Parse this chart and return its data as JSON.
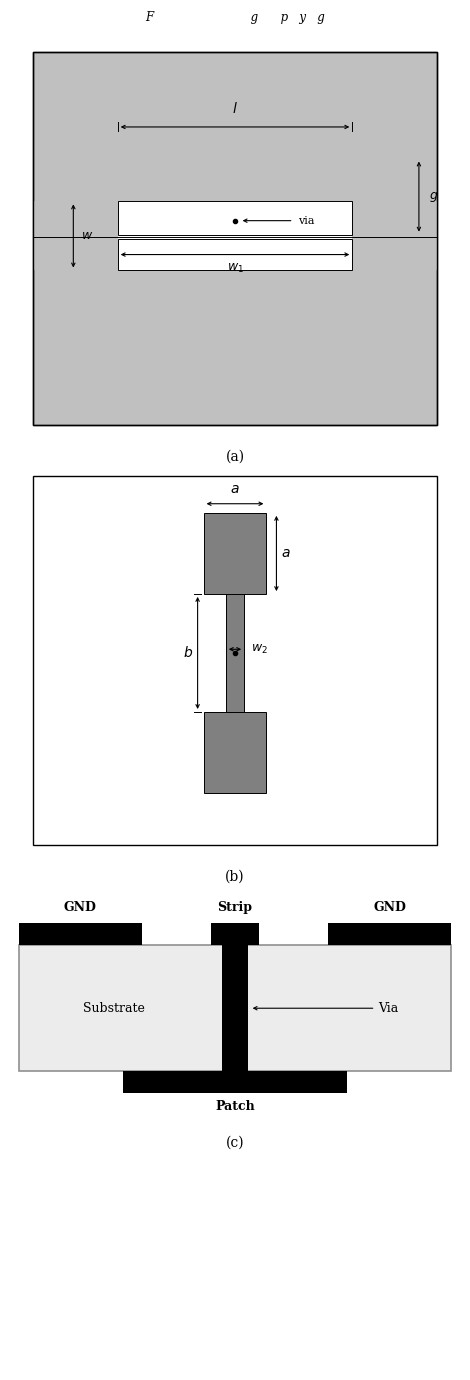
{
  "fig_width": 4.7,
  "fig_height": 13.8,
  "bg_color": "#ffffff",
  "gray_light": "#c0c0c0",
  "black": "#000000",
  "dgray": "#808080",
  "panel_a_label": "(a)",
  "panel_b_label": "(b)",
  "panel_c_label": "(c)"
}
